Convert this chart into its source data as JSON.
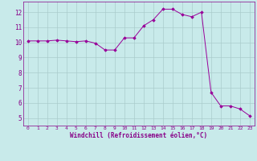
{
  "x": [
    0,
    1,
    2,
    3,
    4,
    5,
    6,
    7,
    8,
    9,
    10,
    11,
    12,
    13,
    14,
    15,
    16,
    17,
    18,
    19,
    20,
    21,
    22,
    23
  ],
  "y": [
    10.1,
    10.1,
    10.1,
    10.15,
    10.1,
    10.05,
    10.1,
    9.95,
    9.5,
    9.5,
    10.3,
    10.3,
    11.1,
    11.5,
    12.2,
    12.2,
    11.85,
    11.7,
    12.0,
    6.7,
    5.8,
    5.8,
    5.6,
    5.15
  ],
  "line_color": "#990099",
  "marker": "D",
  "marker_size": 1.8,
  "bg_color": "#c8eaea",
  "grid_color": "#aacccc",
  "xlabel": "Windchill (Refroidissement éolien,°C)",
  "xlim": [
    -0.5,
    23.5
  ],
  "ylim": [
    4.5,
    12.7
  ],
  "yticks": [
    5,
    6,
    7,
    8,
    9,
    10,
    11,
    12
  ],
  "xticks": [
    0,
    1,
    2,
    3,
    4,
    5,
    6,
    7,
    8,
    9,
    10,
    11,
    12,
    13,
    14,
    15,
    16,
    17,
    18,
    19,
    20,
    21,
    22,
    23
  ],
  "tick_color": "#880088",
  "label_color": "#880088",
  "spine_color": "#880088"
}
